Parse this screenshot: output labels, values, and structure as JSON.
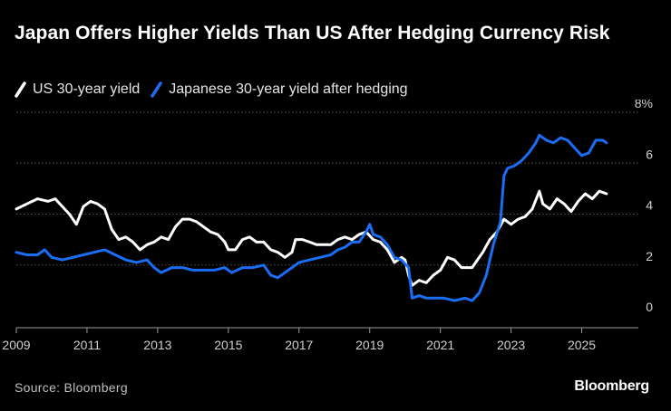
{
  "colors": {
    "us": "#ffffff",
    "japan": "#1a6ef5",
    "grid": "#5a5a5a",
    "axis_text": "#cfcfcf"
  },
  "chart_data": {
    "type": "line",
    "title": "Japan Offers Higher Yields Than US After Hedging Currency Risk",
    "source": "Source: Bloomberg",
    "brand": "Bloomberg",
    "xlim": [
      2009,
      2026.5
    ],
    "ylim": [
      0,
      8
    ],
    "x_ticks": [
      2009,
      2011,
      2013,
      2015,
      2017,
      2019,
      2021,
      2023,
      2025
    ],
    "x_tick_labels": [
      "2009",
      "2011",
      "2013",
      "2015",
      "2017",
      "2019",
      "2021",
      "2023",
      "2025"
    ],
    "y_ticks": [
      0,
      2,
      4,
      6,
      8
    ],
    "y_tick_labels": [
      "0",
      "2",
      "4",
      "6",
      "8%"
    ],
    "grid": true,
    "legend_position": "top-left",
    "series": [
      {
        "name": "US 30-year yield",
        "color": "#ffffff",
        "points": [
          [
            2009.0,
            4.2
          ],
          [
            2009.3,
            4.4
          ],
          [
            2009.6,
            4.6
          ],
          [
            2009.9,
            4.5
          ],
          [
            2010.1,
            4.6
          ],
          [
            2010.3,
            4.3
          ],
          [
            2010.5,
            4.0
          ],
          [
            2010.7,
            3.6
          ],
          [
            2010.9,
            4.3
          ],
          [
            2011.1,
            4.5
          ],
          [
            2011.3,
            4.4
          ],
          [
            2011.5,
            4.2
          ],
          [
            2011.7,
            3.4
          ],
          [
            2011.9,
            3.0
          ],
          [
            2012.1,
            3.1
          ],
          [
            2012.3,
            2.9
          ],
          [
            2012.5,
            2.6
          ],
          [
            2012.7,
            2.8
          ],
          [
            2012.9,
            2.9
          ],
          [
            2013.1,
            3.1
          ],
          [
            2013.3,
            3.0
          ],
          [
            2013.5,
            3.5
          ],
          [
            2013.7,
            3.8
          ],
          [
            2013.9,
            3.8
          ],
          [
            2014.1,
            3.7
          ],
          [
            2014.3,
            3.5
          ],
          [
            2014.5,
            3.3
          ],
          [
            2014.7,
            3.2
          ],
          [
            2014.9,
            2.9
          ],
          [
            2015.0,
            2.6
          ],
          [
            2015.2,
            2.6
          ],
          [
            2015.4,
            3.0
          ],
          [
            2015.6,
            3.1
          ],
          [
            2015.8,
            2.9
          ],
          [
            2016.0,
            2.9
          ],
          [
            2016.2,
            2.6
          ],
          [
            2016.4,
            2.5
          ],
          [
            2016.6,
            2.3
          ],
          [
            2016.8,
            2.5
          ],
          [
            2016.9,
            3.0
          ],
          [
            2017.1,
            3.0
          ],
          [
            2017.3,
            2.9
          ],
          [
            2017.5,
            2.8
          ],
          [
            2017.7,
            2.8
          ],
          [
            2017.9,
            2.8
          ],
          [
            2018.1,
            3.0
          ],
          [
            2018.3,
            3.1
          ],
          [
            2018.5,
            3.0
          ],
          [
            2018.7,
            3.2
          ],
          [
            2018.9,
            3.3
          ],
          [
            2019.1,
            3.0
          ],
          [
            2019.3,
            2.9
          ],
          [
            2019.5,
            2.6
          ],
          [
            2019.7,
            2.1
          ],
          [
            2019.9,
            2.3
          ],
          [
            2020.0,
            2.2
          ],
          [
            2020.1,
            1.6
          ],
          [
            2020.2,
            1.2
          ],
          [
            2020.4,
            1.4
          ],
          [
            2020.6,
            1.3
          ],
          [
            2020.8,
            1.6
          ],
          [
            2021.0,
            1.8
          ],
          [
            2021.2,
            2.3
          ],
          [
            2021.4,
            2.2
          ],
          [
            2021.6,
            1.9
          ],
          [
            2021.8,
            1.9
          ],
          [
            2021.9,
            1.9
          ],
          [
            2022.0,
            2.1
          ],
          [
            2022.2,
            2.5
          ],
          [
            2022.4,
            3.0
          ],
          [
            2022.6,
            3.3
          ],
          [
            2022.8,
            3.8
          ],
          [
            2023.0,
            3.6
          ],
          [
            2023.2,
            3.8
          ],
          [
            2023.4,
            3.9
          ],
          [
            2023.6,
            4.2
          ],
          [
            2023.8,
            4.9
          ],
          [
            2023.9,
            4.4
          ],
          [
            2024.1,
            4.2
          ],
          [
            2024.3,
            4.6
          ],
          [
            2024.5,
            4.4
          ],
          [
            2024.7,
            4.1
          ],
          [
            2024.9,
            4.5
          ],
          [
            2025.1,
            4.8
          ],
          [
            2025.3,
            4.6
          ],
          [
            2025.5,
            4.9
          ],
          [
            2025.7,
            4.8
          ]
        ]
      },
      {
        "name": "Japanese 30-year yield after hedging",
        "color": "#1a6ef5",
        "points": [
          [
            2009.0,
            2.5
          ],
          [
            2009.3,
            2.4
          ],
          [
            2009.6,
            2.4
          ],
          [
            2009.8,
            2.6
          ],
          [
            2010.0,
            2.3
          ],
          [
            2010.3,
            2.2
          ],
          [
            2010.6,
            2.3
          ],
          [
            2010.9,
            2.4
          ],
          [
            2011.2,
            2.5
          ],
          [
            2011.5,
            2.6
          ],
          [
            2011.8,
            2.4
          ],
          [
            2012.1,
            2.2
          ],
          [
            2012.4,
            2.1
          ],
          [
            2012.7,
            2.2
          ],
          [
            2012.9,
            1.9
          ],
          [
            2013.1,
            1.7
          ],
          [
            2013.4,
            1.9
          ],
          [
            2013.7,
            1.9
          ],
          [
            2014.0,
            1.8
          ],
          [
            2014.3,
            1.8
          ],
          [
            2014.6,
            1.8
          ],
          [
            2014.9,
            1.9
          ],
          [
            2015.1,
            1.7
          ],
          [
            2015.4,
            1.9
          ],
          [
            2015.7,
            1.9
          ],
          [
            2016.0,
            2.0
          ],
          [
            2016.2,
            1.6
          ],
          [
            2016.4,
            1.5
          ],
          [
            2016.6,
            1.7
          ],
          [
            2016.8,
            1.9
          ],
          [
            2017.0,
            2.1
          ],
          [
            2017.3,
            2.2
          ],
          [
            2017.6,
            2.3
          ],
          [
            2017.9,
            2.4
          ],
          [
            2018.1,
            2.6
          ],
          [
            2018.3,
            2.7
          ],
          [
            2018.5,
            2.9
          ],
          [
            2018.7,
            2.9
          ],
          [
            2018.9,
            3.3
          ],
          [
            2019.0,
            3.6
          ],
          [
            2019.1,
            3.2
          ],
          [
            2019.3,
            3.1
          ],
          [
            2019.5,
            2.8
          ],
          [
            2019.7,
            2.3
          ],
          [
            2019.9,
            2.2
          ],
          [
            2020.1,
            1.9
          ],
          [
            2020.2,
            0.7
          ],
          [
            2020.4,
            0.8
          ],
          [
            2020.6,
            0.7
          ],
          [
            2020.9,
            0.7
          ],
          [
            2021.1,
            0.7
          ],
          [
            2021.4,
            0.6
          ],
          [
            2021.7,
            0.7
          ],
          [
            2021.9,
            0.6
          ],
          [
            2022.1,
            0.9
          ],
          [
            2022.3,
            1.6
          ],
          [
            2022.5,
            2.8
          ],
          [
            2022.7,
            3.7
          ],
          [
            2022.8,
            5.5
          ],
          [
            2022.9,
            5.8
          ],
          [
            2023.1,
            5.9
          ],
          [
            2023.3,
            6.1
          ],
          [
            2023.5,
            6.4
          ],
          [
            2023.7,
            6.8
          ],
          [
            2023.8,
            7.1
          ],
          [
            2024.0,
            6.9
          ],
          [
            2024.2,
            6.8
          ],
          [
            2024.4,
            7.0
          ],
          [
            2024.6,
            6.9
          ],
          [
            2024.8,
            6.6
          ],
          [
            2025.0,
            6.3
          ],
          [
            2025.2,
            6.4
          ],
          [
            2025.4,
            6.9
          ],
          [
            2025.6,
            6.9
          ],
          [
            2025.7,
            6.8
          ]
        ]
      }
    ]
  }
}
